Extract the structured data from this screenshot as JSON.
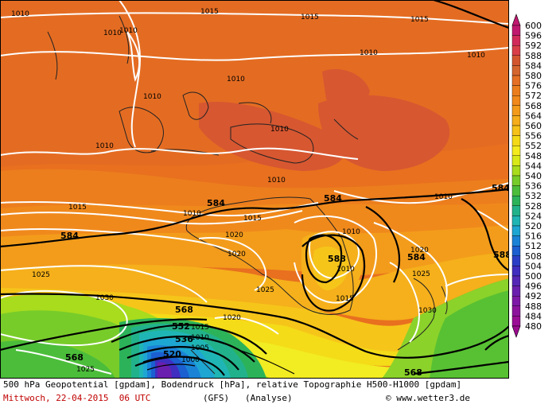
{
  "legend": {
    "values": [
      "600",
      "596",
      "592",
      "588",
      "584",
      "580",
      "576",
      "572",
      "568",
      "564",
      "560",
      "556",
      "552",
      "548",
      "544",
      "540",
      "536",
      "532",
      "528",
      "524",
      "520",
      "516",
      "512",
      "508",
      "504",
      "500",
      "496",
      "492",
      "488",
      "484",
      "480"
    ],
    "colors": [
      "#c0186f",
      "#d12a5a",
      "#d93e48",
      "#d3552f",
      "#d5652f",
      "#e46f25",
      "#ec7d1c",
      "#f0881b",
      "#f39a1b",
      "#f5ad1b",
      "#f6c21a",
      "#f4d917",
      "#f4eb1e",
      "#d8e818",
      "#a9dc1d",
      "#78cc2a",
      "#4bbd3a",
      "#2cb35a",
      "#22b28b",
      "#20b5b5",
      "#1ea6d2",
      "#1a83d6",
      "#1b5fd0",
      "#2b3fc6",
      "#3f2ec0",
      "#5527b6",
      "#6b1fae",
      "#7e18a6",
      "#8d139d",
      "#9a0d95",
      "#9b0b8f"
    ]
  },
  "map": {
    "isobar_labels": [
      "1010",
      "1010",
      "1015",
      "1015",
      "1010",
      "1010",
      "1010",
      "1010",
      "1010",
      "1010",
      "1010",
      "1015",
      "1010",
      "1015",
      "1020",
      "1020",
      "1025",
      "1025",
      "1030",
      "1015",
      "1010",
      "1010",
      "1025",
      "1020",
      "1030",
      "1015",
      "1010",
      "1025",
      "1020",
      "1015",
      "1010",
      "1005",
      "1000"
    ],
    "geopotential_labels": [
      "584",
      "584",
      "584",
      "584",
      "588",
      "568",
      "552",
      "536",
      "520",
      "568",
      "568",
      "584",
      "588"
    ],
    "low_centers": [
      "1010"
    ]
  },
  "footer": {
    "line1": "500 hPa Geopotential [gpdam], Bodendruck [hPa], relative Topographie H500-H1000 [gpdam]",
    "date_line": "Mittwoch, 22-04-2015  06 UTC",
    "model_line": "(GFS)   (Analyse)",
    "credit": "© www.wetter3.de"
  }
}
